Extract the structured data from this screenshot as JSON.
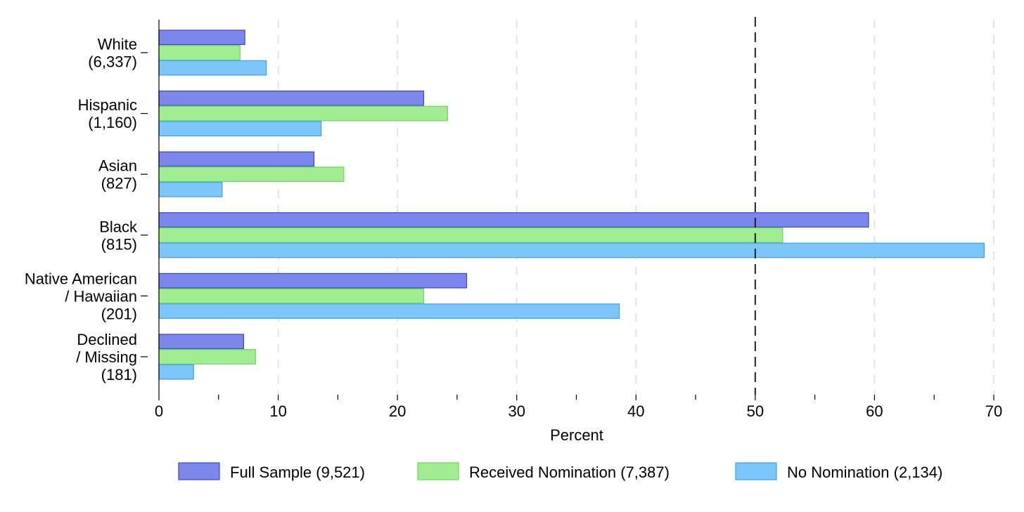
{
  "chart_data": {
    "type": "bar",
    "orientation": "horizontal",
    "xlabel": "Percent",
    "xlim": [
      0,
      70
    ],
    "x_ticks": [
      0,
      10,
      20,
      30,
      40,
      50,
      60,
      70
    ],
    "reference_line": 50,
    "grid": "vertical dashed",
    "legend_position": "bottom",
    "categories": [
      [
        "White",
        "(6,337)"
      ],
      [
        "Hispanic",
        "(1,160)"
      ],
      [
        "Asian",
        "(827)"
      ],
      [
        "Black",
        "(815)"
      ],
      [
        "Native American",
        "/ Hawaiian",
        "(201)"
      ],
      [
        "Declined",
        "/ Missing",
        "(181)"
      ]
    ],
    "series": [
      {
        "name": "Full Sample (9,521)",
        "color": "#7b87ea",
        "stroke": "#3a48d0",
        "values": [
          7.2,
          22.2,
          13.0,
          59.5,
          25.8,
          7.1
        ]
      },
      {
        "name": "Received Nomination (7,387)",
        "color": "#a2ec92",
        "stroke": "#6fd65c",
        "values": [
          6.8,
          24.2,
          15.5,
          52.3,
          22.2,
          8.1
        ]
      },
      {
        "name": "No Nomination (2,134)",
        "color": "#7cc6fb",
        "stroke": "#3aa1f0",
        "values": [
          9.0,
          13.6,
          5.3,
          69.2,
          38.6,
          2.9
        ]
      }
    ]
  }
}
